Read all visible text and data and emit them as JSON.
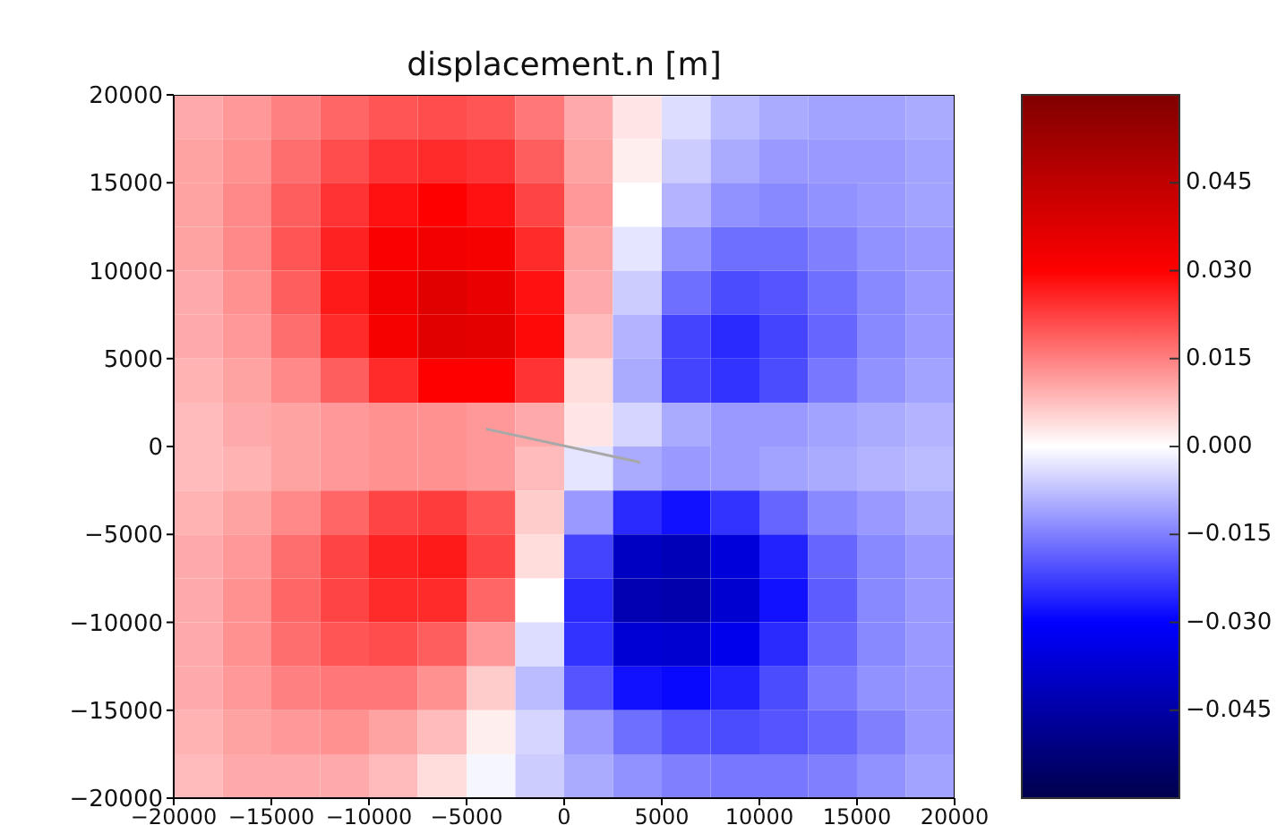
{
  "chart_data": {
    "type": "heatmap",
    "title": "displacement.n [m]",
    "xlim": [
      -20000,
      20000
    ],
    "ylim": [
      -20000,
      20000
    ],
    "xticks": [
      -20000,
      -15000,
      -10000,
      -5000,
      0,
      5000,
      10000,
      15000,
      20000
    ],
    "yticks": [
      -20000,
      -15000,
      -10000,
      -5000,
      0,
      5000,
      10000,
      15000,
      20000
    ],
    "clim": [
      -0.06,
      0.06
    ],
    "cticks": [
      {
        "value": -0.045,
        "label": "−0.045"
      },
      {
        "value": -0.03,
        "label": "−0.030"
      },
      {
        "value": -0.015,
        "label": "−0.015"
      },
      {
        "value": 0,
        "label": "0.000"
      },
      {
        "value": 0.015,
        "label": "0.015"
      },
      {
        "value": 0.03,
        "label": "0.030"
      },
      {
        "value": 0.045,
        "label": "0.045"
      }
    ],
    "cells": [
      [
        0.01,
        0.012,
        0.015,
        0.018,
        0.02,
        0.021,
        0.02,
        0.016,
        0.01,
        0.003,
        -0.004,
        -0.008,
        -0.01,
        -0.011,
        -0.011,
        -0.01
      ],
      [
        0.011,
        0.013,
        0.017,
        0.021,
        0.024,
        0.025,
        0.024,
        0.019,
        0.011,
        0.002,
        -0.006,
        -0.01,
        -0.012,
        -0.012,
        -0.012,
        -0.011
      ],
      [
        0.011,
        0.014,
        0.019,
        0.024,
        0.028,
        0.03,
        0.028,
        0.022,
        0.012,
        0.0,
        -0.009,
        -0.013,
        -0.014,
        -0.013,
        -0.012,
        -0.011
      ],
      [
        0.011,
        0.014,
        0.02,
        0.026,
        0.031,
        0.033,
        0.032,
        0.025,
        0.011,
        -0.003,
        -0.013,
        -0.017,
        -0.017,
        -0.015,
        -0.013,
        -0.012
      ],
      [
        0.01,
        0.013,
        0.019,
        0.027,
        0.033,
        0.037,
        0.035,
        0.028,
        0.01,
        -0.006,
        -0.017,
        -0.021,
        -0.02,
        -0.017,
        -0.014,
        -0.012
      ],
      [
        0.01,
        0.012,
        0.017,
        0.025,
        0.032,
        0.037,
        0.036,
        0.029,
        0.008,
        -0.009,
        -0.022,
        -0.025,
        -0.022,
        -0.018,
        -0.014,
        -0.012
      ],
      [
        0.009,
        0.011,
        0.014,
        0.019,
        0.025,
        0.03,
        0.03,
        0.024,
        0.004,
        -0.01,
        -0.022,
        -0.024,
        -0.021,
        -0.016,
        -0.013,
        -0.011
      ],
      [
        0.008,
        0.01,
        0.011,
        0.012,
        0.013,
        0.013,
        0.012,
        0.01,
        0.003,
        -0.005,
        -0.01,
        -0.012,
        -0.012,
        -0.011,
        -0.01,
        -0.009
      ],
      [
        0.008,
        0.009,
        0.011,
        0.012,
        0.013,
        0.013,
        0.012,
        0.008,
        -0.003,
        -0.01,
        -0.012,
        -0.012,
        -0.011,
        -0.01,
        -0.009,
        -0.008
      ],
      [
        0.009,
        0.011,
        0.014,
        0.018,
        0.022,
        0.023,
        0.02,
        0.006,
        -0.012,
        -0.025,
        -0.028,
        -0.024,
        -0.018,
        -0.014,
        -0.012,
        -0.01
      ],
      [
        0.01,
        0.012,
        0.017,
        0.022,
        0.026,
        0.027,
        0.022,
        0.004,
        -0.022,
        -0.04,
        -0.042,
        -0.036,
        -0.026,
        -0.018,
        -0.014,
        -0.012
      ],
      [
        0.01,
        0.013,
        0.018,
        0.022,
        0.025,
        0.025,
        0.018,
        0.0,
        -0.025,
        -0.043,
        -0.044,
        -0.038,
        -0.028,
        -0.019,
        -0.014,
        -0.012
      ],
      [
        0.01,
        0.013,
        0.017,
        0.02,
        0.021,
        0.019,
        0.012,
        -0.004,
        -0.024,
        -0.037,
        -0.038,
        -0.033,
        -0.025,
        -0.018,
        -0.014,
        -0.012
      ],
      [
        0.01,
        0.012,
        0.015,
        0.016,
        0.016,
        0.013,
        0.006,
        -0.008,
        -0.02,
        -0.028,
        -0.029,
        -0.026,
        -0.021,
        -0.016,
        -0.013,
        -0.012
      ],
      [
        0.009,
        0.011,
        0.012,
        0.013,
        0.011,
        0.008,
        0.002,
        -0.005,
        -0.012,
        -0.017,
        -0.02,
        -0.021,
        -0.02,
        -0.018,
        -0.015,
        -0.012
      ],
      [
        0.008,
        0.01,
        0.01,
        0.01,
        0.008,
        0.004,
        -0.001,
        -0.006,
        -0.01,
        -0.013,
        -0.015,
        -0.016,
        -0.016,
        -0.015,
        -0.013,
        -0.011
      ]
    ],
    "series": [
      {
        "type": "line",
        "color": "#a8a8a8",
        "x": [
          -4000,
          3900
        ],
        "values": [
          1000,
          -900
        ]
      }
    ]
  }
}
